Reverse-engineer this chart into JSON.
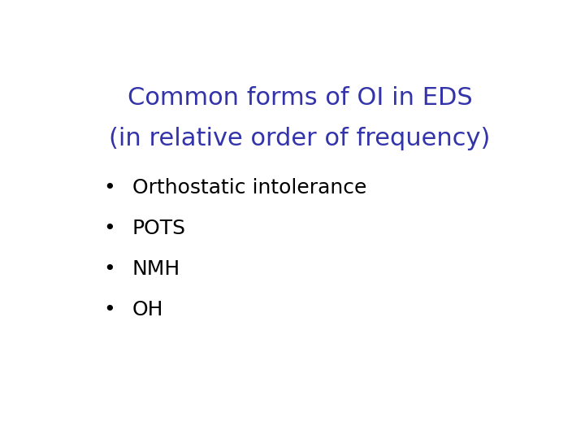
{
  "title_line1": "Common forms of OI in EDS",
  "title_line2": "(in relative order of frequency)",
  "title_color": "#3333aa",
  "bullet_items": [
    "Orthostatic intolerance",
    "POTS",
    "NMH",
    "OH"
  ],
  "bullet_color": "#000000",
  "background_color": "#ffffff",
  "title_fontsize": 22,
  "bullet_fontsize": 18,
  "bullet_symbol": "•"
}
